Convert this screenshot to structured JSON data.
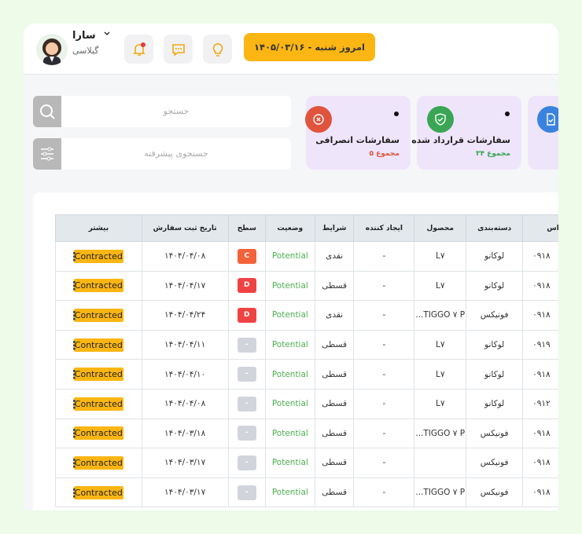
{
  "header": {
    "user": {
      "name": "سارا",
      "subtitle": "گیلاسی"
    },
    "date_button": "امروز شنبه - ۱۴۰۵/۰۳/۱۶"
  },
  "search": {
    "placeholder": "جستجو",
    "advanced_placeholder": "جستجوی پیشرفته"
  },
  "cards": [
    {
      "title": "سفارشات انصرافی",
      "total": "مجموع ۵"
    },
    {
      "title": "سفارشات قرارداد شده",
      "total": "مجموع ۳۴"
    }
  ],
  "table": {
    "columns": [
      "اس",
      "دسته‌بندی",
      "محصول",
      "ایجاد کننده",
      "شرایط",
      "وضعیت",
      "سطح",
      "تاریخ ثبت سفارش",
      "بیشتر"
    ],
    "rows": [
      [
        "۰۹۱۸",
        "لوکانو",
        "L۷",
        "-",
        "نقدی",
        "Potential",
        "C",
        "۱۴۰۴/۰۴/۰۸",
        "Contracted"
      ],
      [
        "۰۹۱۸",
        "لوکانو",
        "L۷",
        "-",
        "قسطی",
        "Potential",
        "D",
        "۱۴۰۴/۰۴/۱۷",
        "Contracted"
      ],
      [
        "۰۹۱۸",
        "فونیکس",
        "TIGGO ۷ P...",
        "-",
        "نقدی",
        "Potential",
        "D",
        "۱۴۰۴/۰۴/۲۴",
        "Contracted"
      ],
      [
        "۰۹۱۹",
        "لوکانو",
        "L۷",
        "-",
        "قسطی",
        "Potential",
        "-",
        "۱۴۰۴/۰۴/۱۱",
        "Contracted"
      ],
      [
        "۰۹۱۸",
        "لوکانو",
        "L۷",
        "-",
        "قسطی",
        "Potential",
        "-",
        "۱۴۰۴/۰۴/۱۰",
        "Contracted"
      ],
      [
        "۰۹۱۲",
        "لوکانو",
        "L۷",
        "-",
        "قسطی",
        "Potential",
        "-",
        "۱۴۰۴/۰۴/۰۸",
        "Contracted"
      ],
      [
        "۰۹۱۸",
        "فونیکس",
        "TIGGO ۷ P...",
        "-",
        "قسطی",
        "Potential",
        "-",
        "۱۴۰۴/۰۳/۱۸",
        "Contracted"
      ],
      [
        "۰۹۱۸",
        "فونیکس",
        "",
        "-",
        "قسطی",
        "Potential",
        "-",
        "۱۴۰۴/۰۳/۱۷",
        "Contracted"
      ],
      [
        "۰۹۱۸",
        "فونیکس",
        "TIGGO ۷ P...",
        "-",
        "قسطی",
        "Potential",
        "-",
        "۱۴۰۴/۰۳/۱۷",
        "Contracted"
      ]
    ]
  }
}
